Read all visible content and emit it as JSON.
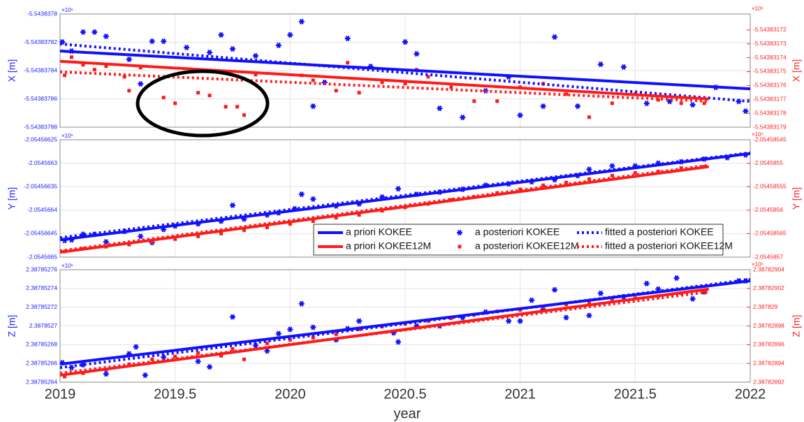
{
  "chart_data": [
    {
      "type": "scatter",
      "ylabel": "X [m]",
      "y2label": "X [m]",
      "y_exponent": "×10⁶",
      "y2_exponent": "×10⁶",
      "y_color": "#2020ff",
      "y2_color": "#ff2020",
      "xlim": [
        2019,
        2022
      ],
      "xticks": [
        2019,
        2019.5,
        2020,
        2020.5,
        2021,
        2021.5,
        2022
      ],
      "xtick_labels": false,
      "grid": true,
      "ylim": [
        -5.54383788,
        -5.5438378
      ],
      "yticks": [
        -5.5438378,
        -5.54383782,
        -5.54383784,
        -5.54383786,
        -5.54383788
      ],
      "y2lim": [
        -5.54383179,
        -5.5438317085
      ],
      "y2ticks": [
        -5.54383172,
        -5.54383173,
        -5.54383174,
        -5.54383175,
        -5.54383176,
        -5.54383177,
        -5.54383178,
        -5.54383179
      ],
      "series": [
        {
          "color": "#1010ff",
          "style": "solid",
          "axis": "y",
          "x": [
            2019,
            2022
          ],
          "values": [
            -5.5438378262,
            -5.5438378529
          ]
        },
        {
          "color": "#1010ff",
          "style": "marker",
          "marker": "asterisk",
          "axis": "y",
          "x": [
            2019.01,
            2019.05,
            2019.1,
            2019.15,
            2019.2,
            2019.3,
            2019.35,
            2019.4,
            2019.45,
            2019.55,
            2019.65,
            2019.7,
            2019.75,
            2019.85,
            2019.95,
            2020.0,
            2020.05,
            2020.1,
            2020.15,
            2020.25,
            2020.35,
            2020.5,
            2020.55,
            2020.65,
            2020.75,
            2020.85,
            2020.95,
            2021.0,
            2021.1,
            2021.15,
            2021.25,
            2021.35,
            2021.45,
            2021.55,
            2021.65,
            2021.75,
            2021.85,
            2021.95,
            2021.98
          ],
          "values": [
            -5.5438378198,
            -5.5438378262,
            -5.5438378128,
            -5.5438378128,
            -5.5438378158,
            -5.5438378321,
            -5.5438378494,
            -5.5438378193,
            -5.5438378193,
            -5.5438378237,
            -5.5438378272,
            -5.5438378148,
            -5.5438378247,
            -5.5438378296,
            -5.5438378222,
            -5.5438378148,
            -5.5438378054,
            -5.5438378652,
            -5.5438378484,
            -5.5438378173,
            -5.5438378371,
            -5.5438378198,
            -5.5438378282,
            -5.5438378667,
            -5.5438378731,
            -5.5438378543,
            -5.5438378445,
            -5.5438378716,
            -5.5438378652,
            -5.5438378163,
            -5.5438378652,
            -5.5438378356,
            -5.5438378375,
            -5.5438378632,
            -5.5438378618,
            -5.5438378642,
            -5.5438378519,
            -5.5438378618,
            -5.5438378687
          ]
        },
        {
          "color": "#1010ff",
          "style": "dotted",
          "axis": "y",
          "x": [
            2019,
            2022
          ],
          "values": [
            -5.5438378212,
            -5.5438378618
          ]
        },
        {
          "color": "#ff1a1a",
          "style": "solid",
          "axis": "y2",
          "x": [
            2019,
            2021.82
          ],
          "values": [
            -5.5438317426,
            -5.5438317697
          ]
        },
        {
          "color": "#ff1a1a",
          "style": "marker",
          "marker": "square",
          "axis": "y2",
          "x": [
            2019.02,
            2019.05,
            2019.1,
            2019.15,
            2019.2,
            2019.28,
            2019.3,
            2019.35,
            2019.45,
            2019.5,
            2019.6,
            2019.65,
            2019.72,
            2019.77,
            2019.8,
            2019.85,
            2020.05,
            2020.1,
            2020.2,
            2020.25,
            2020.3,
            2020.4,
            2020.5,
            2020.55,
            2020.6,
            2020.7,
            2020.8,
            2020.9,
            2021.0,
            2021.1,
            2021.2,
            2021.3,
            2021.4,
            2021.5,
            2021.6,
            2021.7,
            2021.8
          ],
          "values": [
            -5.5438317527,
            -5.5438317396,
            -5.5438317451,
            -5.5438317486,
            -5.5438317461,
            -5.5438317537,
            -5.5438317637,
            -5.5438317471,
            -5.5438317687,
            -5.5438317728,
            -5.5438317652,
            -5.5438317672,
            -5.5438317753,
            -5.5438317753,
            -5.5438317813,
            -5.5438317522,
            -5.5438317527,
            -5.5438317562,
            -5.5438317637,
            -5.5438317436,
            -5.5438317652,
            -5.5438317577,
            -5.5438317587,
            -5.5438317486,
            -5.5438317537,
            -5.5438317612,
            -5.5438317713,
            -5.5438317713,
            -5.5438317612,
            -5.5438317587,
            -5.5438317662,
            -5.5438317828,
            -5.5438317728,
            -5.5438317662,
            -5.5438317703,
            -5.5438317728,
            -5.5438317728
          ]
        },
        {
          "color": "#ff1a1a",
          "style": "dotted",
          "axis": "y2",
          "x": [
            2019,
            2021.82
          ],
          "values": [
            -5.5438317502,
            -5.5438317713
          ]
        }
      ]
    },
    {
      "type": "scatter",
      "ylabel": "Y [m]",
      "y2label": "Y [m]",
      "y_exponent": "×10⁶",
      "y2_exponent": "×10⁶",
      "y_color": "#2020ff",
      "y2_color": "#ff2020",
      "xlim": [
        2019,
        2022
      ],
      "xticks": [
        2019,
        2019.5,
        2020,
        2020.5,
        2021,
        2021.5,
        2022
      ],
      "xtick_labels": false,
      "grid": true,
      "legend": "lower right",
      "ylim": [
        -2.0545665,
        -2.05456625
      ],
      "yticks": [
        -2.05456625,
        -2.0545663,
        -2.05456635,
        -2.0545664,
        -2.05456645,
        -2.0545665
      ],
      "y2lim": [
        -2.0545857,
        -2.05458545
      ],
      "y2ticks": [
        -2.05458545,
        -2.0545855,
        -2.05458555,
        -2.0545856,
        -2.05458565,
        -2.0545857
      ],
      "series": [
        {
          "name": "a priori KOKEE",
          "color": "#1010ff",
          "style": "solid",
          "axis": "y",
          "x": [
            2019,
            2022
          ],
          "values": [
            -2.0545664632,
            -2.0545662794
          ]
        },
        {
          "name": "a posteriori KOKEE",
          "color": "#1010ff",
          "style": "marker",
          "marker": "asterisk",
          "axis": "y",
          "x": [
            2019.02,
            2019.05,
            2019.1,
            2019.15,
            2019.2,
            2019.28,
            2019.35,
            2019.4,
            2019.45,
            2019.5,
            2019.6,
            2019.7,
            2019.75,
            2019.8,
            2019.9,
            2019.95,
            2020.02,
            2020.05,
            2020.1,
            2020.2,
            2020.3,
            2020.4,
            2020.47,
            2020.55,
            2020.65,
            2020.75,
            2020.85,
            2020.95,
            2021.05,
            2021.15,
            2021.25,
            2021.3,
            2021.4,
            2021.5,
            2021.6,
            2021.7,
            2021.8,
            2021.9,
            2021.98
          ],
          "values": [
            -2.0545664646,
            -2.0545664632,
            -2.0545664514,
            -2.0545664514,
            -2.0545664676,
            -2.0545664455,
            -2.0545664558,
            -2.054566469,
            -2.0545664411,
            -2.0545664338,
            -2.0545664293,
            -2.0545664235,
            -2.0545663897,
            -2.0545664191,
            -2.0545664102,
            -2.0545664058,
            -2.054566397,
            -2.0545663661,
            -2.0545663764,
            -2.0545663911,
            -2.0545663867,
            -2.054566372,
            -2.0545663544,
            -2.0545663661,
            -2.0545663617,
            -2.0545663558,
            -2.054566347,
            -2.0545663441,
            -2.0545663397,
            -2.0545663353,
            -2.0545663264,
            -2.0545663132,
            -2.0545663059,
            -2.0545663059,
            -2.0545663,
            -2.054566297,
            -2.0545662912,
            -2.0545662882,
            -2.0545662823
          ]
        },
        {
          "name": "fitted a posteriori KOKEE",
          "color": "#1010ff",
          "style": "dotted",
          "axis": "y",
          "x": [
            2019,
            2022
          ],
          "values": [
            -2.0545664587,
            -2.0545662779
          ]
        },
        {
          "name": "a priori KOKEE12M",
          "color": "#ff1a1a",
          "style": "solid",
          "axis": "y2",
          "x": [
            2019,
            2021.82
          ],
          "values": [
            -2.0545856896,
            -2.0545855073
          ]
        },
        {
          "name": "a posteriori KOKEE12M",
          "color": "#ff1a1a",
          "style": "marker",
          "marker": "square",
          "axis": "y2",
          "x": [
            2019.02,
            2019.1,
            2019.2,
            2019.3,
            2019.4,
            2019.5,
            2019.6,
            2019.7,
            2019.8,
            2019.9,
            2020.0,
            2020.1,
            2020.2,
            2020.3,
            2020.4,
            2020.5,
            2020.6,
            2020.7,
            2020.8,
            2020.9,
            2021.0,
            2021.1,
            2021.2,
            2021.3,
            2021.4,
            2021.5,
            2021.6,
            2021.7,
            2021.8
          ],
          "values": [
            -2.0545856881,
            -2.0545856823,
            -2.0545856779,
            -2.0545856734,
            -2.0545856676,
            -2.0545856617,
            -2.0545856558,
            -2.0545856499,
            -2.0545856426,
            -2.0545856367,
            -2.0545856293,
            -2.0545856235,
            -2.0545856161,
            -2.0545856102,
            -2.0545856014,
            -2.0545855941,
            -2.0545855867,
            -2.0545855779,
            -2.054585572,
            -2.0545855632,
            -2.0545855558,
            -2.054585547,
            -2.0545855411,
            -2.0545855338,
            -2.0545855264,
            -2.0545855206,
            -2.0545855176,
            -2.0545855103,
            -2.0545855073
          ]
        },
        {
          "name": "fitted a posteriori KOKEE12M",
          "color": "#ff1a1a",
          "style": "dotted",
          "axis": "y2",
          "x": [
            2019,
            2021.82
          ],
          "values": [
            -2.0545856867,
            -2.0545855044
          ]
        }
      ]
    },
    {
      "type": "scatter",
      "ylabel": "Z [m]",
      "y2label": "Z [m]",
      "y_exponent": "×10⁶",
      "y2_exponent": "×10⁶",
      "y_color": "#2020ff",
      "y2_color": "#ff2020",
      "xlim": [
        2019,
        2022
      ],
      "xticks": [
        2019,
        2019.5,
        2020,
        2020.5,
        2021,
        2021.5,
        2022
      ],
      "xtick_labels": true,
      "xlabel": "year",
      "grid": true,
      "ylim": [
        2.38785264,
        2.38785276
      ],
      "yticks": [
        2.38785276,
        2.38785274,
        2.38785272,
        2.3878527,
        2.38785268,
        2.38785266,
        2.38785264
      ],
      "y2lim": [
        2.38782892,
        2.38782904
      ],
      "y2ticks": [
        2.38782904,
        2.38782902,
        2.387829,
        2.38782898,
        2.38782896,
        2.38782894,
        2.38782892
      ],
      "series": [
        {
          "color": "#1010ff",
          "style": "solid",
          "axis": "y",
          "x": [
            2019,
            2022
          ],
          "values": [
            2.3878526592,
            2.3878527481
          ]
        },
        {
          "color": "#1010ff",
          "style": "marker",
          "marker": "asterisk",
          "axis": "y",
          "x": [
            2019.01,
            2019.05,
            2019.1,
            2019.2,
            2019.3,
            2019.33,
            2019.37,
            2019.45,
            2019.6,
            2019.65,
            2019.75,
            2019.85,
            2019.9,
            2019.95,
            2020.0,
            2020.05,
            2020.1,
            2020.2,
            2020.25,
            2020.3,
            2020.45,
            2020.47,
            2020.55,
            2020.65,
            2020.75,
            2020.85,
            2020.95,
            2021.0,
            2021.05,
            2021.1,
            2021.15,
            2021.2,
            2021.3,
            2021.35,
            2021.45,
            2021.55,
            2021.6,
            2021.68,
            2021.75,
            2021.8,
            2021.95,
            2021.98
          ],
          "values": [
            2.3878526607,
            2.3878526555,
            2.3878526585,
            2.3878526488,
            2.3878526703,
            2.3878526777,
            2.3878526474,
            2.3878526666,
            2.3878526622,
            2.3878526563,
            2.3878527096,
            2.3878526792,
            2.3878526733,
            2.3878526918,
            2.3878526963,
            2.3878527237,
            2.3878526985,
            2.3878526852,
            2.387852697,
            2.3878527052,
            2.3878526926,
            2.3878526829,
            2.3878527,
            2.3878527,
            2.3878527089,
            2.3878527148,
            2.3878527052,
            2.3878527052,
            2.3878527274,
            2.3878527178,
            2.3878527385,
            2.3878527089,
            2.3878527111,
            2.3878527348,
            2.3878527311,
            2.3878527452,
            2.3878527393,
            2.3878527511,
            2.3878527289,
            2.3878527363,
            2.3878527481,
            2.3878527481
          ]
        },
        {
          "color": "#1010ff",
          "style": "dotted",
          "axis": "y",
          "x": [
            2019,
            2022
          ],
          "values": [
            2.3878526555,
            2.3878527496
          ]
        },
        {
          "color": "#ff1a1a",
          "style": "solid",
          "axis": "y2",
          "x": [
            2019,
            2021.82
          ],
          "values": [
            2.3878289274,
            2.3878290193
          ]
        },
        {
          "color": "#ff1a1a",
          "style": "marker",
          "marker": "square",
          "axis": "y2",
          "x": [
            2019.02,
            2019.1,
            2019.2,
            2019.3,
            2019.4,
            2019.5,
            2019.6,
            2019.7,
            2019.75,
            2019.8,
            2019.9,
            2020.0,
            2020.1,
            2020.2,
            2020.3,
            2020.4,
            2020.5,
            2020.6,
            2020.7,
            2020.8,
            2020.9,
            2021.0,
            2021.1,
            2021.2,
            2021.3,
            2021.4,
            2021.5,
            2021.6,
            2021.7,
            2021.8
          ],
          "values": [
            2.3878289259,
            2.3878289296,
            2.3878289333,
            2.3878289392,
            2.3878289444,
            2.3878289474,
            2.3878289511,
            2.3878289481,
            2.3878289555,
            2.3878289444,
            2.3878289615,
            2.3878289652,
            2.3878289674,
            2.3878289711,
            2.3878289763,
            2.3878289792,
            2.3878289822,
            2.3878289852,
            2.3878289881,
            2.3878289918,
            2.3878289955,
            2.387828997,
            2.387829,
            2.3878290029,
            2.3878290044,
            2.3878290074,
            2.3878290096,
            2.3878290118,
            2.3878290148,
            2.387829017
          ]
        },
        {
          "color": "#ff1a1a",
          "style": "dotted",
          "axis": "y2",
          "x": [
            2019,
            2021.82
          ],
          "values": [
            2.3878289296,
            2.3878290163
          ]
        }
      ]
    }
  ]
}
